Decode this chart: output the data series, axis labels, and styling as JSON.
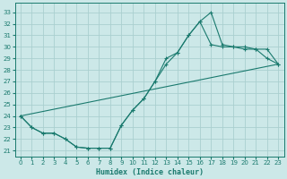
{
  "xlabel": "Humidex (Indice chaleur)",
  "xlim": [
    -0.5,
    23.5
  ],
  "ylim": [
    20.5,
    33.8
  ],
  "yticks": [
    21,
    22,
    23,
    24,
    25,
    26,
    27,
    28,
    29,
    30,
    31,
    32,
    33
  ],
  "xticks": [
    0,
    1,
    2,
    3,
    4,
    5,
    6,
    7,
    8,
    9,
    10,
    11,
    12,
    13,
    14,
    15,
    16,
    17,
    18,
    19,
    20,
    21,
    22,
    23
  ],
  "line_color": "#1a7a6e",
  "bg_color": "#cce8e8",
  "grid_color": "#aacfcf",
  "curve1_x": [
    0,
    1,
    2,
    3,
    4,
    5,
    6,
    7,
    8,
    9,
    10,
    11,
    12,
    13,
    14,
    15,
    16,
    17,
    18,
    19,
    20,
    21,
    22,
    23
  ],
  "curve1_y": [
    24.0,
    23.0,
    22.5,
    22.5,
    22.0,
    21.3,
    21.2,
    21.2,
    21.2,
    23.2,
    24.5,
    25.5,
    27.0,
    29.0,
    29.5,
    31.0,
    32.2,
    33.0,
    30.2,
    30.0,
    30.0,
    29.8,
    29.8,
    28.5
  ],
  "curve2_x": [
    0,
    1,
    2,
    3,
    4,
    5,
    6,
    7,
    8,
    9,
    10,
    11,
    12,
    13,
    14,
    15,
    16,
    17,
    18,
    19,
    20,
    21,
    22,
    23
  ],
  "curve2_y": [
    24.0,
    23.0,
    22.5,
    22.5,
    22.0,
    21.3,
    21.2,
    21.2,
    21.2,
    23.2,
    24.5,
    25.5,
    27.0,
    28.5,
    29.5,
    31.0,
    32.2,
    30.2,
    30.0,
    30.0,
    29.8,
    29.8,
    29.0,
    28.5
  ],
  "line3_x": [
    0,
    23
  ],
  "line3_y": [
    24.0,
    28.5
  ],
  "title_fontsize": 7,
  "xlabel_fontsize": 6,
  "tick_fontsize": 5
}
